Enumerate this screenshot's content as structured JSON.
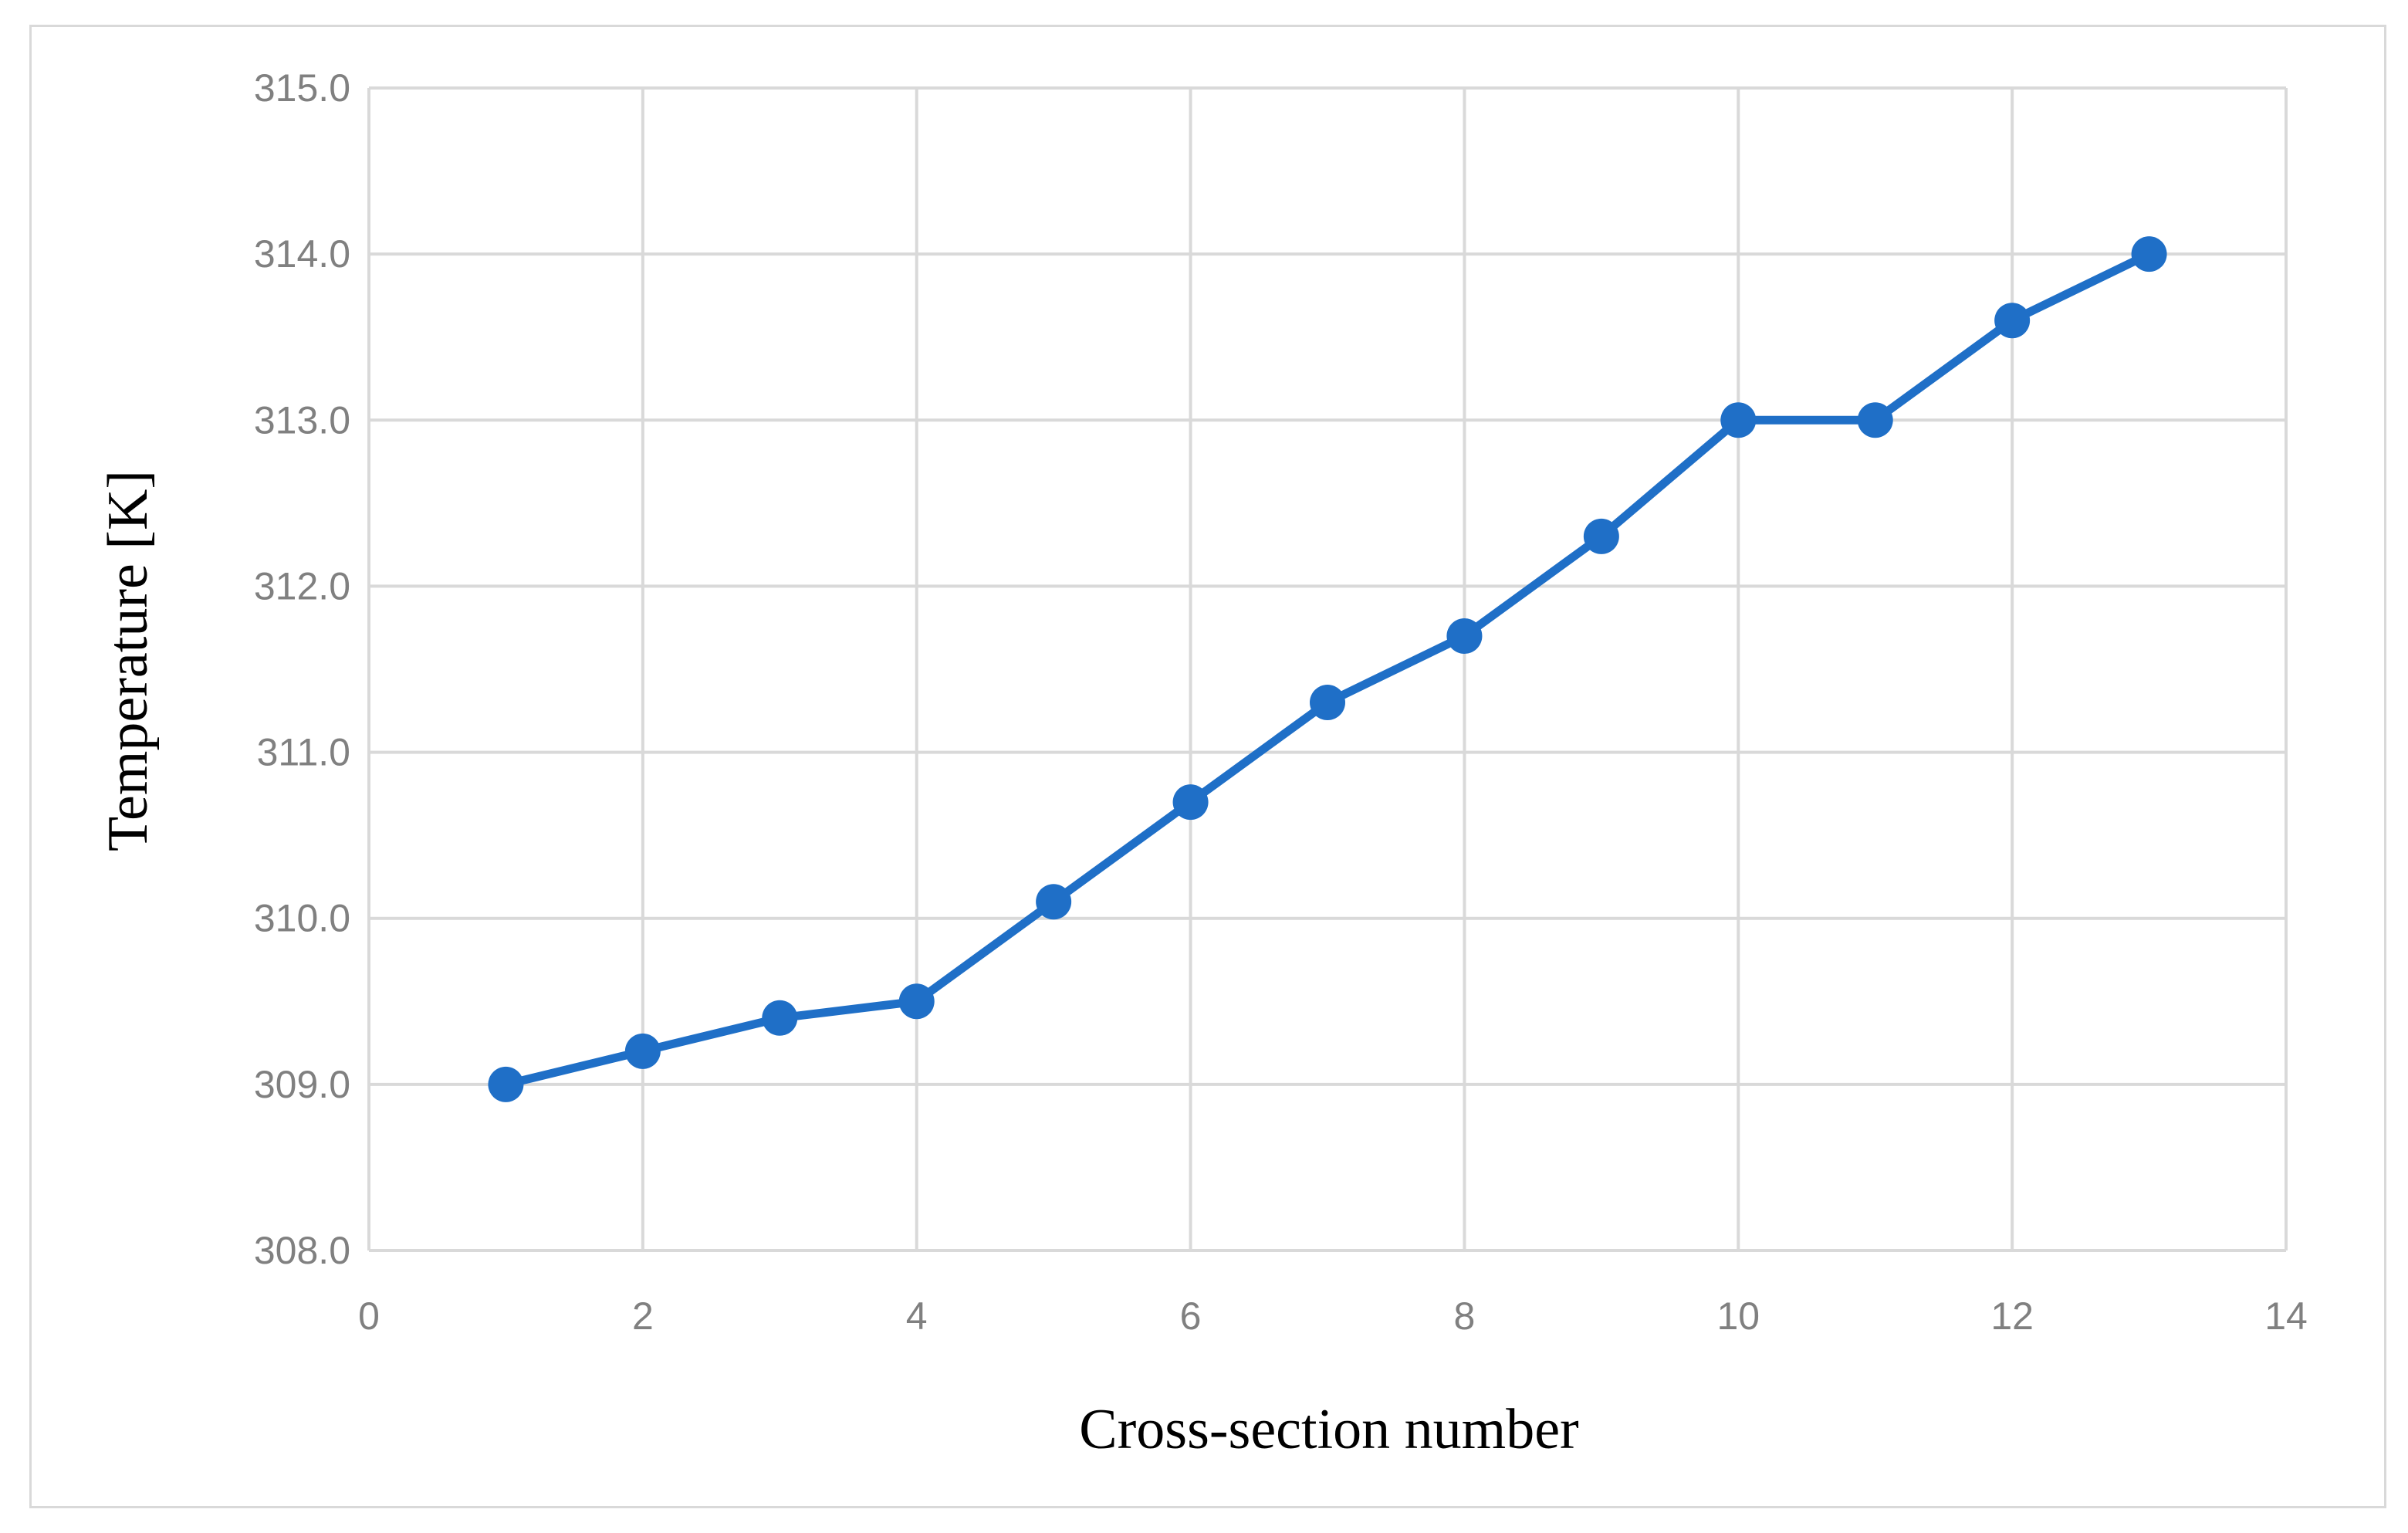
{
  "chart_data": {
    "type": "line",
    "title": "",
    "xlabel": "Cross-section number",
    "ylabel": "Temperature [K]",
    "xlim": [
      0,
      14
    ],
    "ylim": [
      308.0,
      315.0
    ],
    "x_ticks": [
      0,
      2,
      4,
      6,
      8,
      10,
      12,
      14
    ],
    "y_ticks": [
      308.0,
      309.0,
      310.0,
      311.0,
      312.0,
      313.0,
      314.0,
      315.0
    ],
    "x_tick_labels": [
      "0",
      "2",
      "4",
      "6",
      "8",
      "10",
      "12",
      "14"
    ],
    "y_tick_labels": [
      "308.0",
      "309.0",
      "310.0",
      "311.0",
      "312.0",
      "313.0",
      "314.0",
      "315.0"
    ],
    "grid": true,
    "legend": "none",
    "series": [
      {
        "color": "#1f6fc7",
        "marker": "circle",
        "x": [
          1,
          2,
          3,
          4,
          5,
          6,
          7,
          8,
          9,
          10,
          11,
          12,
          13
        ],
        "y": [
          309.0,
          309.2,
          309.4,
          309.5,
          310.1,
          310.7,
          311.3,
          311.7,
          312.3,
          313.0,
          313.0,
          313.6,
          314.0
        ]
      }
    ]
  },
  "colors": {
    "grid": "#d9d9d9",
    "tick_text": "#808080",
    "frame": "#d9d9d9",
    "series": "#1f6fc7"
  }
}
